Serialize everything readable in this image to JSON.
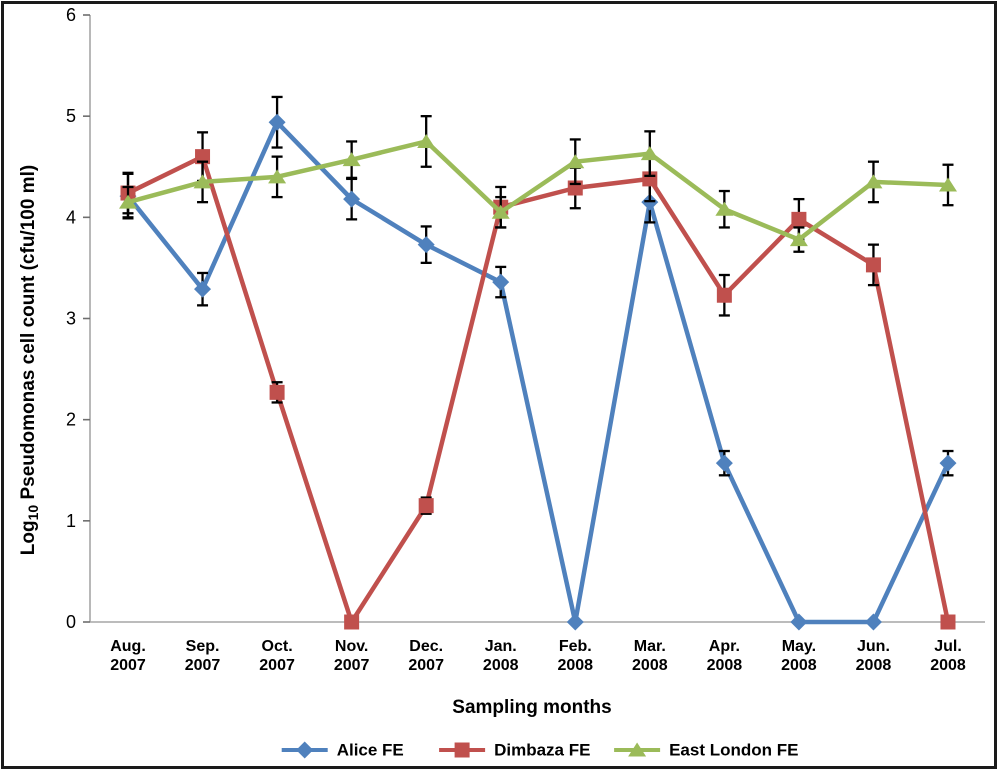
{
  "figure": {
    "xlabel": "Sampling months",
    "ylabel": {
      "prefix": "Log",
      "sub": "10",
      "suffix": " Pseudomonas cell count (cfu/100 ml)"
    }
  },
  "chart_data": {
    "type": "line",
    "title": "",
    "xlabel": "Sampling months",
    "ylabel": "Log10 Pseudomonas cell count (cfu/100 ml)",
    "ylim": [
      0,
      6
    ],
    "yticks": [
      0,
      1,
      2,
      3,
      4,
      5,
      6
    ],
    "grid": false,
    "legend_position": "bottom",
    "axis_color": "#A6A6A6",
    "tick_color": "#6E6E6E",
    "error_bar_color": "#000000",
    "categories": [
      [
        "Aug.",
        "2007"
      ],
      [
        "Sep.",
        "2007"
      ],
      [
        "Oct.",
        "2007"
      ],
      [
        "Nov.",
        "2007"
      ],
      [
        "Dec.",
        "2007"
      ],
      [
        "Jan.",
        "2008"
      ],
      [
        "Feb.",
        "2008"
      ],
      [
        "Mar.",
        "2008"
      ],
      [
        "Apr.",
        "2008"
      ],
      [
        "May.",
        "2008"
      ],
      [
        "Jun.",
        "2008"
      ],
      [
        "Jul.",
        "2008"
      ]
    ],
    "series": [
      {
        "name": "Alice FE",
        "color": "#4F81BD",
        "marker": "diamond",
        "values": [
          4.21,
          3.29,
          4.94,
          4.18,
          3.73,
          3.36,
          0,
          4.15,
          1.57,
          0,
          0,
          1.57
        ],
        "errors": [
          0.22,
          0.16,
          0.25,
          0.2,
          0.18,
          0.15,
          0,
          0.2,
          0.12,
          0,
          0,
          0.12
        ]
      },
      {
        "name": "Dimbaza FE",
        "color": "#C0504D",
        "marker": "square",
        "values": [
          4.24,
          4.6,
          2.27,
          0,
          1.15,
          4.1,
          4.29,
          4.38,
          3.23,
          3.98,
          3.53,
          0
        ],
        "errors": [
          0.2,
          0.24,
          0.1,
          0,
          0.08,
          0.2,
          0.2,
          0.22,
          0.2,
          0.2,
          0.2,
          0
        ]
      },
      {
        "name": "East London FE",
        "color": "#9BBB59",
        "marker": "triangle",
        "values": [
          4.15,
          4.35,
          4.4,
          4.57,
          4.75,
          4.05,
          4.55,
          4.63,
          4.08,
          3.78,
          4.35,
          4.32
        ],
        "errors": [
          0.15,
          0.2,
          0.2,
          0.18,
          0.25,
          0.15,
          0.22,
          0.22,
          0.18,
          0.12,
          0.2,
          0.2
        ]
      }
    ]
  }
}
